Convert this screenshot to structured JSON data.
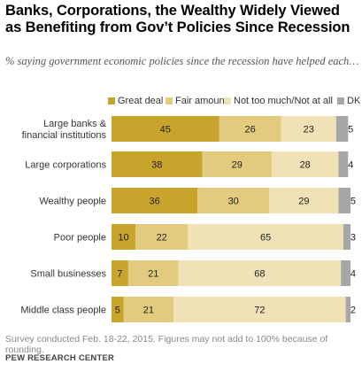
{
  "title": "Banks, Corporations, the Wealthy Widely Viewed as Benefiting from Gov’t Policies Since Recession",
  "subtitle": "% saying government economic policies since the recession have helped each…",
  "note": "Survey conducted Feb. 18-22, 2015. Figures may not add to 100% because of rounding.",
  "source": "PEW RESEARCH CENTER",
  "colors": {
    "great_deal": "#c9a42d",
    "fair_amount": "#e2cb7e",
    "not_too_much": "#f0e2b6",
    "dk": "#a6a6a6"
  },
  "chart_data": {
    "type": "bar",
    "orientation": "horizontal",
    "stacked": true,
    "categories": [
      "Large banks & financial institutions",
      "Large corporations",
      "Wealthy people",
      "Poor people",
      "Small businesses",
      "Middle class people"
    ],
    "series": [
      {
        "name": "Great deal",
        "values": [
          45,
          38,
          36,
          10,
          7,
          5
        ]
      },
      {
        "name": "Fair amount",
        "values": [
          26,
          29,
          30,
          22,
          21,
          21
        ]
      },
      {
        "name": "Not too much/Not at all",
        "values": [
          23,
          28,
          29,
          65,
          68,
          72
        ]
      },
      {
        "name": "DK",
        "values": [
          5,
          4,
          5,
          3,
          4,
          2
        ]
      }
    ],
    "legend_position": "top",
    "grid": false
  }
}
